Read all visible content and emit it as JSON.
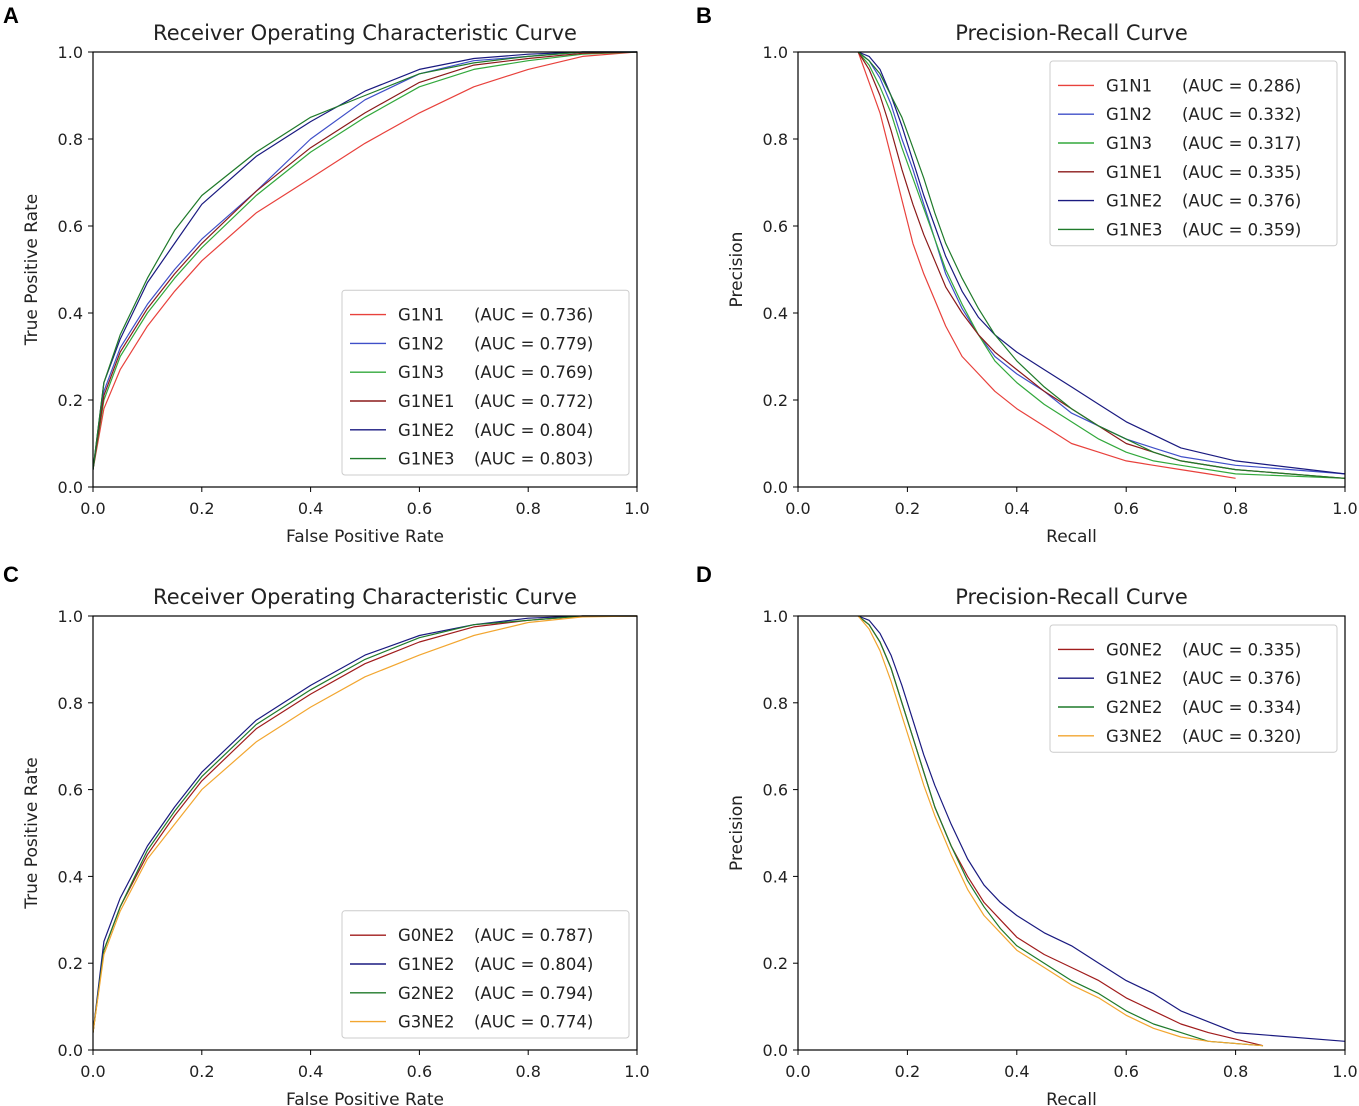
{
  "figure": {
    "panels": [
      "A",
      "B",
      "C",
      "D"
    ]
  },
  "colors": {
    "G1N1": "#e8413c",
    "G1N2": "#3f4fc8",
    "G1N3": "#32a83c",
    "G1NE1": "#8b1a1a",
    "G1NE2": "#1a1a80",
    "G1NE3": "#1f7a2a",
    "G0NE2": "#a01c1c",
    "G2NE2": "#1f7a2a",
    "G3NE2": "#f2a630"
  },
  "chart_data": [
    {
      "panel": "A",
      "type": "line",
      "title": "Receiver Operating Characteristic Curve",
      "xlabel": "False Positive Rate",
      "ylabel": "True Positive Rate",
      "xlim": [
        0,
        1
      ],
      "ylim": [
        0,
        1
      ],
      "xticks": [
        "0.0",
        "0.2",
        "0.4",
        "0.6",
        "0.8",
        "1.0"
      ],
      "yticks": [
        "0.0",
        "0.2",
        "0.4",
        "0.6",
        "0.8",
        "1.0"
      ],
      "legend_position": "lower-right",
      "series": [
        {
          "key": "G1N1",
          "name": "G1N1",
          "auc_label": "(AUC = 0.736)",
          "x": [
            0,
            0.02,
            0.05,
            0.1,
            0.15,
            0.2,
            0.3,
            0.4,
            0.5,
            0.6,
            0.7,
            0.8,
            0.9,
            1.0
          ],
          "y": [
            0.04,
            0.18,
            0.27,
            0.37,
            0.45,
            0.52,
            0.63,
            0.71,
            0.79,
            0.86,
            0.92,
            0.96,
            0.99,
            1.0
          ]
        },
        {
          "key": "G1N2",
          "name": "G1N2",
          "auc_label": "(AUC = 0.779)",
          "x": [
            0,
            0.02,
            0.05,
            0.1,
            0.15,
            0.2,
            0.3,
            0.4,
            0.5,
            0.6,
            0.7,
            0.8,
            0.9,
            1.0
          ],
          "y": [
            0.04,
            0.22,
            0.32,
            0.42,
            0.5,
            0.57,
            0.68,
            0.8,
            0.89,
            0.95,
            0.98,
            0.99,
            1.0,
            1.0
          ]
        },
        {
          "key": "G1N3",
          "name": "G1N3",
          "auc_label": "(AUC = 0.769)",
          "x": [
            0,
            0.02,
            0.05,
            0.1,
            0.15,
            0.2,
            0.3,
            0.4,
            0.5,
            0.6,
            0.7,
            0.8,
            0.9,
            1.0
          ],
          "y": [
            0.04,
            0.2,
            0.3,
            0.4,
            0.48,
            0.55,
            0.67,
            0.77,
            0.85,
            0.92,
            0.96,
            0.98,
            0.995,
            1.0
          ]
        },
        {
          "key": "G1NE1",
          "name": "G1NE1",
          "auc_label": "(AUC = 0.772)",
          "x": [
            0,
            0.02,
            0.05,
            0.1,
            0.15,
            0.2,
            0.3,
            0.4,
            0.5,
            0.6,
            0.7,
            0.8,
            0.9,
            1.0
          ],
          "y": [
            0.04,
            0.21,
            0.31,
            0.41,
            0.49,
            0.56,
            0.68,
            0.78,
            0.86,
            0.93,
            0.97,
            0.985,
            0.997,
            1.0
          ]
        },
        {
          "key": "G1NE2",
          "name": "G1NE2",
          "auc_label": "(AUC = 0.804)",
          "x": [
            0,
            0.02,
            0.05,
            0.1,
            0.15,
            0.2,
            0.3,
            0.4,
            0.5,
            0.6,
            0.7,
            0.8,
            0.9,
            1.0
          ],
          "y": [
            0.04,
            0.24,
            0.34,
            0.47,
            0.56,
            0.65,
            0.76,
            0.84,
            0.91,
            0.96,
            0.985,
            0.995,
            1.0,
            1.0
          ]
        },
        {
          "key": "G1NE3",
          "name": "G1NE3",
          "auc_label": "(AUC = 0.803)",
          "x": [
            0,
            0.02,
            0.05,
            0.1,
            0.15,
            0.2,
            0.3,
            0.4,
            0.5,
            0.6,
            0.7,
            0.8,
            0.9,
            1.0
          ],
          "y": [
            0.04,
            0.24,
            0.35,
            0.48,
            0.59,
            0.67,
            0.77,
            0.85,
            0.9,
            0.95,
            0.975,
            0.99,
            1.0,
            1.0
          ]
        }
      ]
    },
    {
      "panel": "B",
      "type": "line",
      "title": "Precision-Recall Curve",
      "xlabel": "Recall",
      "ylabel": "Precision",
      "xlim": [
        0,
        1
      ],
      "ylim": [
        0,
        1
      ],
      "xticks": [
        "0.0",
        "0.2",
        "0.4",
        "0.6",
        "0.8",
        "1.0"
      ],
      "yticks": [
        "0.0",
        "0.2",
        "0.4",
        "0.6",
        "0.8",
        "1.0"
      ],
      "legend_position": "upper-right",
      "series": [
        {
          "key": "G1N1",
          "name": "G1N1",
          "auc_label": "(AUC = 0.286)",
          "x": [
            0.11,
            0.13,
            0.15,
            0.17,
            0.19,
            0.21,
            0.23,
            0.25,
            0.27,
            0.3,
            0.33,
            0.36,
            0.4,
            0.45,
            0.5,
            0.55,
            0.6,
            0.65,
            0.7,
            0.75,
            0.8
          ],
          "y": [
            1.0,
            0.93,
            0.86,
            0.76,
            0.66,
            0.56,
            0.49,
            0.43,
            0.37,
            0.3,
            0.26,
            0.22,
            0.18,
            0.14,
            0.1,
            0.08,
            0.06,
            0.05,
            0.04,
            0.03,
            0.02
          ]
        },
        {
          "key": "G1N2",
          "name": "G1N2",
          "auc_label": "(AUC = 0.332)",
          "x": [
            0.11,
            0.13,
            0.15,
            0.17,
            0.19,
            0.21,
            0.23,
            0.25,
            0.27,
            0.3,
            0.33,
            0.36,
            0.4,
            0.45,
            0.5,
            0.55,
            0.6,
            0.65,
            0.7,
            0.8,
            1.0
          ],
          "y": [
            1.0,
            0.98,
            0.94,
            0.88,
            0.8,
            0.73,
            0.65,
            0.57,
            0.49,
            0.41,
            0.35,
            0.3,
            0.26,
            0.22,
            0.17,
            0.14,
            0.11,
            0.09,
            0.07,
            0.05,
            0.03
          ]
        },
        {
          "key": "G1N3",
          "name": "G1N3",
          "auc_label": "(AUC = 0.317)",
          "x": [
            0.11,
            0.13,
            0.15,
            0.17,
            0.19,
            0.21,
            0.23,
            0.25,
            0.27,
            0.3,
            0.33,
            0.36,
            0.4,
            0.45,
            0.5,
            0.55,
            0.6,
            0.65,
            0.7,
            0.8,
            1.0
          ],
          "y": [
            1.0,
            0.97,
            0.92,
            0.86,
            0.78,
            0.71,
            0.64,
            0.57,
            0.5,
            0.42,
            0.35,
            0.29,
            0.24,
            0.19,
            0.15,
            0.11,
            0.08,
            0.06,
            0.05,
            0.03,
            0.02
          ]
        },
        {
          "key": "G1NE1",
          "name": "G1NE1",
          "auc_label": "(AUC = 0.335)",
          "x": [
            0.11,
            0.13,
            0.15,
            0.17,
            0.19,
            0.21,
            0.23,
            0.25,
            0.27,
            0.3,
            0.33,
            0.36,
            0.4,
            0.45,
            0.5,
            0.55,
            0.6,
            0.65,
            0.7,
            0.8,
            1.0
          ],
          "y": [
            1.0,
            0.96,
            0.9,
            0.82,
            0.73,
            0.65,
            0.58,
            0.52,
            0.46,
            0.4,
            0.35,
            0.31,
            0.27,
            0.22,
            0.18,
            0.14,
            0.1,
            0.08,
            0.06,
            0.04,
            0.02
          ]
        },
        {
          "key": "G1NE2",
          "name": "G1NE2",
          "auc_label": "(AUC = 0.376)",
          "x": [
            0.11,
            0.13,
            0.15,
            0.17,
            0.19,
            0.21,
            0.23,
            0.25,
            0.27,
            0.3,
            0.33,
            0.36,
            0.4,
            0.45,
            0.5,
            0.55,
            0.6,
            0.65,
            0.7,
            0.8,
            1.0
          ],
          "y": [
            1.0,
            0.99,
            0.96,
            0.9,
            0.83,
            0.75,
            0.67,
            0.6,
            0.53,
            0.45,
            0.39,
            0.35,
            0.31,
            0.27,
            0.23,
            0.19,
            0.15,
            0.12,
            0.09,
            0.06,
            0.03
          ]
        },
        {
          "key": "G1NE3",
          "name": "G1NE3",
          "auc_label": "(AUC = 0.359)",
          "x": [
            0.11,
            0.13,
            0.15,
            0.17,
            0.19,
            0.21,
            0.23,
            0.25,
            0.27,
            0.3,
            0.33,
            0.36,
            0.4,
            0.45,
            0.5,
            0.55,
            0.6,
            0.65,
            0.7,
            0.8,
            1.0
          ],
          "y": [
            1.0,
            0.98,
            0.95,
            0.9,
            0.85,
            0.78,
            0.71,
            0.63,
            0.56,
            0.48,
            0.41,
            0.35,
            0.29,
            0.23,
            0.18,
            0.14,
            0.11,
            0.08,
            0.06,
            0.04,
            0.02
          ]
        }
      ]
    },
    {
      "panel": "C",
      "type": "line",
      "title": "Receiver Operating Characteristic Curve",
      "xlabel": "False Positive Rate",
      "ylabel": "True Positive Rate",
      "xlim": [
        0,
        1
      ],
      "ylim": [
        0,
        1
      ],
      "xticks": [
        "0.0",
        "0.2",
        "0.4",
        "0.6",
        "0.8",
        "1.0"
      ],
      "yticks": [
        "0.0",
        "0.2",
        "0.4",
        "0.6",
        "0.8",
        "1.0"
      ],
      "legend_position": "lower-right",
      "series": [
        {
          "key": "G0NE2",
          "name": "G0NE2",
          "auc_label": "(AUC = 0.787)",
          "x": [
            0,
            0.02,
            0.05,
            0.1,
            0.15,
            0.2,
            0.3,
            0.4,
            0.5,
            0.6,
            0.7,
            0.8,
            0.9,
            1.0
          ],
          "y": [
            0.04,
            0.23,
            0.33,
            0.45,
            0.54,
            0.62,
            0.74,
            0.82,
            0.89,
            0.94,
            0.975,
            0.99,
            1.0,
            1.0
          ]
        },
        {
          "key": "G1NE2",
          "name": "G1NE2",
          "auc_label": "(AUC = 0.804)",
          "x": [
            0,
            0.02,
            0.05,
            0.1,
            0.15,
            0.2,
            0.3,
            0.4,
            0.5,
            0.6,
            0.7,
            0.8,
            0.9,
            1.0
          ],
          "y": [
            0.04,
            0.25,
            0.35,
            0.47,
            0.56,
            0.64,
            0.76,
            0.84,
            0.91,
            0.955,
            0.98,
            0.995,
            1.0,
            1.0
          ]
        },
        {
          "key": "G2NE2",
          "name": "G2NE2",
          "auc_label": "(AUC = 0.794)",
          "x": [
            0,
            0.02,
            0.05,
            0.1,
            0.15,
            0.2,
            0.3,
            0.4,
            0.5,
            0.6,
            0.7,
            0.8,
            0.9,
            1.0
          ],
          "y": [
            0.04,
            0.23,
            0.33,
            0.46,
            0.55,
            0.63,
            0.75,
            0.83,
            0.9,
            0.95,
            0.98,
            0.99,
            1.0,
            1.0
          ]
        },
        {
          "key": "G3NE2",
          "name": "G3NE2",
          "auc_label": "(AUC = 0.774)",
          "x": [
            0,
            0.02,
            0.05,
            0.1,
            0.15,
            0.2,
            0.3,
            0.4,
            0.5,
            0.6,
            0.7,
            0.8,
            0.9,
            1.0
          ],
          "y": [
            0.04,
            0.22,
            0.32,
            0.44,
            0.52,
            0.6,
            0.71,
            0.79,
            0.86,
            0.91,
            0.955,
            0.985,
            0.998,
            1.0
          ]
        }
      ]
    },
    {
      "panel": "D",
      "type": "line",
      "title": "Precision-Recall Curve",
      "xlabel": "Recall",
      "ylabel": "Precision",
      "xlim": [
        0,
        1
      ],
      "ylim": [
        0,
        1
      ],
      "xticks": [
        "0.0",
        "0.2",
        "0.4",
        "0.6",
        "0.8",
        "1.0"
      ],
      "yticks": [
        "0.0",
        "0.2",
        "0.4",
        "0.6",
        "0.8",
        "1.0"
      ],
      "legend_position": "upper-right",
      "series": [
        {
          "key": "G0NE2",
          "name": "G0NE2",
          "auc_label": "(AUC = 0.335)",
          "x": [
            0.11,
            0.13,
            0.15,
            0.17,
            0.19,
            0.21,
            0.23,
            0.25,
            0.28,
            0.31,
            0.34,
            0.37,
            0.4,
            0.45,
            0.5,
            0.55,
            0.6,
            0.65,
            0.7,
            0.75,
            0.85
          ],
          "y": [
            1.0,
            0.98,
            0.94,
            0.88,
            0.8,
            0.72,
            0.64,
            0.56,
            0.47,
            0.4,
            0.34,
            0.3,
            0.26,
            0.22,
            0.19,
            0.16,
            0.12,
            0.09,
            0.06,
            0.04,
            0.01
          ]
        },
        {
          "key": "G1NE2",
          "name": "G1NE2",
          "auc_label": "(AUC = 0.376)",
          "x": [
            0.11,
            0.13,
            0.15,
            0.17,
            0.19,
            0.21,
            0.23,
            0.25,
            0.28,
            0.31,
            0.34,
            0.37,
            0.4,
            0.45,
            0.5,
            0.55,
            0.6,
            0.65,
            0.7,
            0.8,
            1.0
          ],
          "y": [
            1.0,
            0.99,
            0.96,
            0.91,
            0.84,
            0.76,
            0.68,
            0.61,
            0.52,
            0.44,
            0.38,
            0.34,
            0.31,
            0.27,
            0.24,
            0.2,
            0.16,
            0.13,
            0.09,
            0.04,
            0.02
          ]
        },
        {
          "key": "G2NE2",
          "name": "G2NE2",
          "auc_label": "(AUC = 0.334)",
          "x": [
            0.11,
            0.13,
            0.15,
            0.17,
            0.19,
            0.21,
            0.23,
            0.25,
            0.28,
            0.31,
            0.34,
            0.37,
            0.4,
            0.45,
            0.5,
            0.55,
            0.6,
            0.65,
            0.7,
            0.75,
            0.85
          ],
          "y": [
            1.0,
            0.98,
            0.94,
            0.88,
            0.8,
            0.72,
            0.64,
            0.56,
            0.47,
            0.39,
            0.33,
            0.28,
            0.24,
            0.2,
            0.16,
            0.13,
            0.09,
            0.06,
            0.04,
            0.02,
            0.01
          ]
        },
        {
          "key": "G3NE2",
          "name": "G3NE2",
          "auc_label": "(AUC = 0.320)",
          "x": [
            0.11,
            0.13,
            0.15,
            0.17,
            0.19,
            0.21,
            0.23,
            0.25,
            0.28,
            0.31,
            0.34,
            0.37,
            0.4,
            0.45,
            0.5,
            0.55,
            0.6,
            0.65,
            0.7,
            0.75,
            0.85
          ],
          "y": [
            1.0,
            0.97,
            0.92,
            0.85,
            0.77,
            0.69,
            0.61,
            0.54,
            0.45,
            0.37,
            0.31,
            0.27,
            0.23,
            0.19,
            0.15,
            0.12,
            0.08,
            0.05,
            0.03,
            0.02,
            0.01
          ]
        }
      ]
    }
  ]
}
